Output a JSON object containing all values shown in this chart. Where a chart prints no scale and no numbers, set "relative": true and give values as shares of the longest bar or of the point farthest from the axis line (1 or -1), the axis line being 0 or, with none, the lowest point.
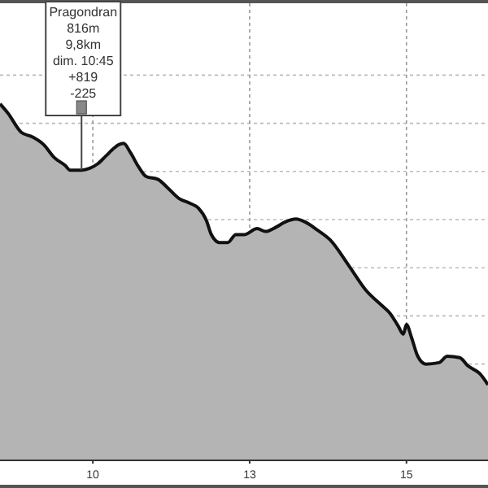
{
  "chart_data": {
    "type": "area",
    "relative": true,
    "x": [
      8.52,
      8.65,
      8.86,
      9.04,
      9.22,
      9.38,
      9.56,
      9.64,
      9.82,
      9.95,
      10.08,
      10.21,
      10.34,
      10.41,
      10.49,
      10.6,
      10.73,
      10.85,
      11.04,
      11.19,
      11.37,
      11.55,
      11.68,
      11.81,
      11.89,
      12.02,
      12.15,
      12.28,
      12.41,
      12.62,
      12.75,
      12.93,
      13.06,
      13.24,
      13.39,
      13.58,
      13.78,
      14.09,
      14.35,
      14.61,
      14.74,
      14.87,
      14.95,
      15.0,
      15.08,
      15.18,
      15.31,
      15.52,
      15.65,
      15.85,
      15.98,
      16.17,
      16.3
    ],
    "series": [
      {
        "color": "#b4b4b4",
        "values": [
          1.0,
          0.973,
          0.92,
          0.907,
          0.885,
          0.85,
          0.827,
          0.814,
          0.814,
          0.819,
          0.832,
          0.854,
          0.876,
          0.885,
          0.889,
          0.863,
          0.823,
          0.796,
          0.788,
          0.765,
          0.735,
          0.721,
          0.708,
          0.673,
          0.633,
          0.611,
          0.611,
          0.633,
          0.633,
          0.65,
          0.642,
          0.655,
          0.668,
          0.677,
          0.668,
          0.646,
          0.619,
          0.544,
          0.478,
          0.434,
          0.412,
          0.376,
          0.354,
          0.381,
          0.345,
          0.292,
          0.27,
          0.274,
          0.292,
          0.288,
          0.265,
          0.243,
          0.212
        ]
      }
    ],
    "xlim": [
      8.52,
      16.3
    ],
    "xticks": [
      10,
      {
        "value": 12.5,
        "label": "13"
      },
      15
    ],
    "grid": true,
    "annotations": [
      {
        "text": "Pragondran\n816m\n9,8km\ndim. 10:45\n+819\n-225",
        "x": 9.82,
        "y": 0.814
      }
    ]
  }
}
